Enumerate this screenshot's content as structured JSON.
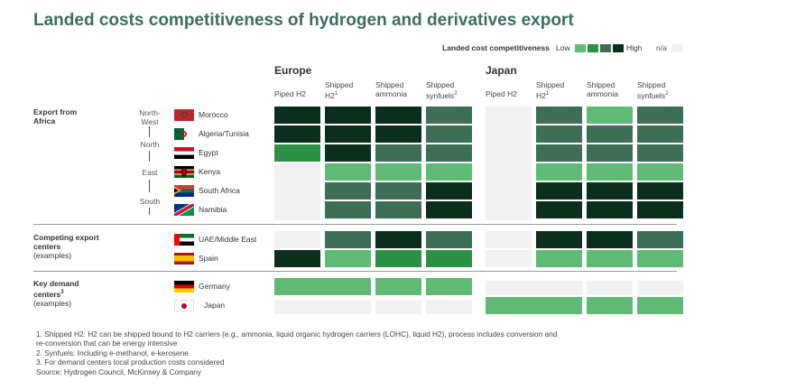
{
  "title": "Landed costs competitiveness of hydrogen and derivatives export",
  "legend": {
    "title": "Landed cost competitiveness",
    "low": "Low",
    "high": "High",
    "na": "n/a"
  },
  "colors": {
    "levels": [
      "#f1f1f1",
      "#5fba76",
      "#2b9146",
      "#3d6e56",
      "#0c2e1c"
    ],
    "legend_swatches": [
      "#5fba76",
      "#2b9146",
      "#3d6e56",
      "#0c2e1c"
    ]
  },
  "chart_data": {
    "type": "heatmap",
    "title": "Landed costs competitiveness of hydrogen and derivatives export",
    "groups": [
      {
        "name": "Europe",
        "columns": [
          "Piped H2",
          "Shipped H2¹",
          "Shipped ammonia",
          "Shipped synfuels²"
        ]
      },
      {
        "name": "Japan",
        "columns": [
          "Piped H2",
          "Shipped H2¹",
          "Shipped ammonia",
          "Shipped synfuels²"
        ]
      }
    ],
    "scale": "0 = n/a, 1 = Low … 4 = High",
    "sections": [
      {
        "label": "Export from Africa",
        "rows": [
          {
            "name": "Morocco",
            "flag": "morocco",
            "region": "North-West",
            "values": [
              4,
              4,
              4,
              3,
              0,
              3,
              1,
              3
            ]
          },
          {
            "name": "Algeria/Tunisia",
            "flag": "algeria",
            "region": "",
            "values": [
              4,
              4,
              4,
              3,
              0,
              3,
              3,
              3
            ]
          },
          {
            "name": "Egypt",
            "flag": "egypt",
            "region": "North",
            "values": [
              2,
              4,
              3,
              3,
              0,
              3,
              3,
              3
            ]
          },
          {
            "name": "Kenya",
            "flag": "kenya",
            "region": "East",
            "values": [
              0,
              1,
              1,
              1,
              0,
              1,
              1,
              1
            ]
          },
          {
            "name": "South Africa",
            "flag": "south-africa",
            "region": "",
            "values": [
              0,
              3,
              3,
              4,
              0,
              4,
              4,
              4
            ]
          },
          {
            "name": "Namibia",
            "flag": "namibia",
            "region": "South",
            "values": [
              0,
              3,
              3,
              4,
              0,
              4,
              4,
              4
            ]
          }
        ]
      },
      {
        "label": "Competing export centers",
        "sublabel": "(examples)",
        "rows": [
          {
            "name": "UAE/Middle East",
            "flag": "uae",
            "values": [
              0,
              3,
              4,
              3,
              0,
              4,
              4,
              3
            ]
          },
          {
            "name": "Spain",
            "flag": "spain",
            "values": [
              4,
              1,
              2,
              2,
              0,
              1,
              1,
              1
            ]
          }
        ]
      },
      {
        "label": "Key demand centers³",
        "sublabel": "(examples)",
        "rows": [
          {
            "name": "Germany",
            "flag": "germany",
            "values": [
              1,
              1,
              1,
              1,
              0,
              0,
              0,
              0
            ],
            "piped_span": true
          },
          {
            "name": "Japan",
            "flag": "japan",
            "values": [
              0,
              0,
              0,
              0,
              1,
              1,
              1,
              1
            ],
            "piped_span": true
          }
        ]
      }
    ]
  },
  "footnotes": [
    "1. Shipped H2: H2 can be shipped bound to H2 carriers (e.g., ammonia, liquid organic hydrogen carriers (LOHC), liquid H2), process includes conversion and",
    "    re-conversion that can be energy intensive",
    "2. Synfuels: Including e-methanol, e-kerosene",
    "3. For demand centers local production costs considered",
    "Source: Hydrogen Council, McKinsey & Company"
  ]
}
